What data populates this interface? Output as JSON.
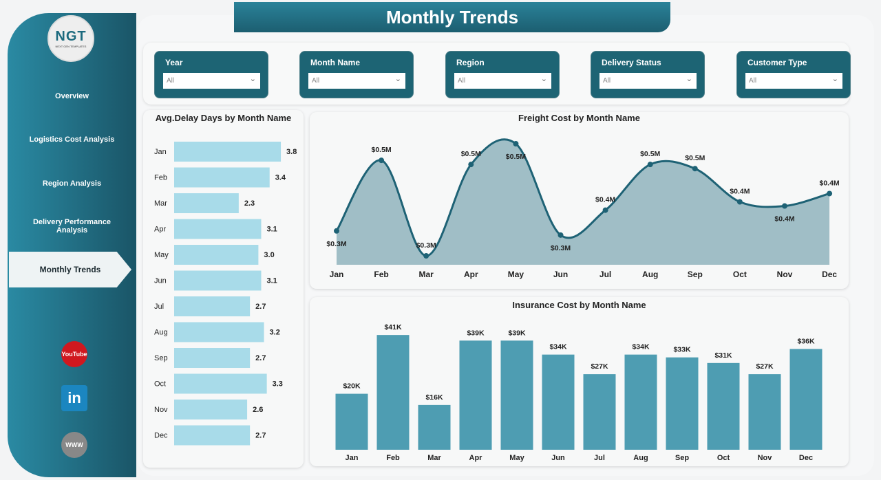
{
  "page_title": "Monthly Trends",
  "logo": {
    "text": "NGT",
    "subtitle": "NEXT GEN TEMPLATES"
  },
  "sidebar": {
    "items": [
      {
        "label": "Overview"
      },
      {
        "label": "Logistics Cost Analysis"
      },
      {
        "label": "Region Analysis"
      },
      {
        "label": "Delivery Performance Analysis"
      },
      {
        "label": "Monthly Trends",
        "active": true
      }
    ],
    "social": [
      {
        "icon": "youtube-icon",
        "label": "YouTube"
      },
      {
        "icon": "linkedin-icon",
        "label": "in"
      },
      {
        "icon": "globe-icon",
        "label": "WWW"
      }
    ]
  },
  "filters": [
    {
      "label": "Year",
      "value": "All"
    },
    {
      "label": "Month Name",
      "value": "All"
    },
    {
      "label": "Region",
      "value": "All"
    },
    {
      "label": "Delivery Status",
      "value": "All"
    },
    {
      "label": "Customer Type",
      "value": "All"
    }
  ],
  "colors": {
    "primary": "#1d6474",
    "light_bar": "#a8dbe9",
    "insurance_bar": "#4e9db2",
    "freight_line": "#1e6275",
    "freight_fill": "#a0bec6"
  },
  "chart_data": [
    {
      "type": "bar",
      "orientation": "horizontal",
      "title": "Avg.Delay Days by Month Name",
      "categories": [
        "Jan",
        "Feb",
        "Mar",
        "Apr",
        "May",
        "Jun",
        "Jul",
        "Aug",
        "Sep",
        "Oct",
        "Nov",
        "Dec"
      ],
      "values": [
        3.8,
        3.4,
        2.3,
        3.1,
        3.0,
        3.1,
        2.7,
        3.2,
        2.7,
        3.3,
        2.6,
        2.7
      ],
      "labels": [
        "3.8",
        "3.4",
        "2.3",
        "3.1",
        "3.0",
        "3.1",
        "2.7",
        "3.2",
        "2.7",
        "3.3",
        "2.6",
        "2.7"
      ]
    },
    {
      "type": "area",
      "title": "Freight Cost by Month Name",
      "categories": [
        "Jan",
        "Feb",
        "Mar",
        "Apr",
        "May",
        "Jun",
        "Jul",
        "Aug",
        "Sep",
        "Oct",
        "Nov",
        "Dec"
      ],
      "values": [
        0.31,
        0.48,
        0.25,
        0.47,
        0.52,
        0.3,
        0.36,
        0.47,
        0.46,
        0.38,
        0.37,
        0.4
      ],
      "labels": [
        "$0.3M",
        "$0.5M",
        "$0.3M",
        "$0.5M",
        "$0.5M",
        "$0.3M",
        "$0.4M",
        "$0.5M",
        "$0.5M",
        "$0.4M",
        "$0.4M",
        "$0.4M"
      ],
      "unit": "$M"
    },
    {
      "type": "bar",
      "title": "Insurance Cost by Month Name",
      "categories": [
        "Jan",
        "Feb",
        "Mar",
        "Apr",
        "May",
        "Jun",
        "Jul",
        "Aug",
        "Sep",
        "Oct",
        "Nov",
        "Dec"
      ],
      "values": [
        20,
        41,
        16,
        39,
        39,
        34,
        27,
        34,
        33,
        31,
        27,
        36
      ],
      "labels": [
        "$20K",
        "$41K",
        "$16K",
        "$39K",
        "$39K",
        "$34K",
        "$27K",
        "$34K",
        "$33K",
        "$31K",
        "$27K",
        "$36K"
      ],
      "unit": "$K"
    }
  ]
}
